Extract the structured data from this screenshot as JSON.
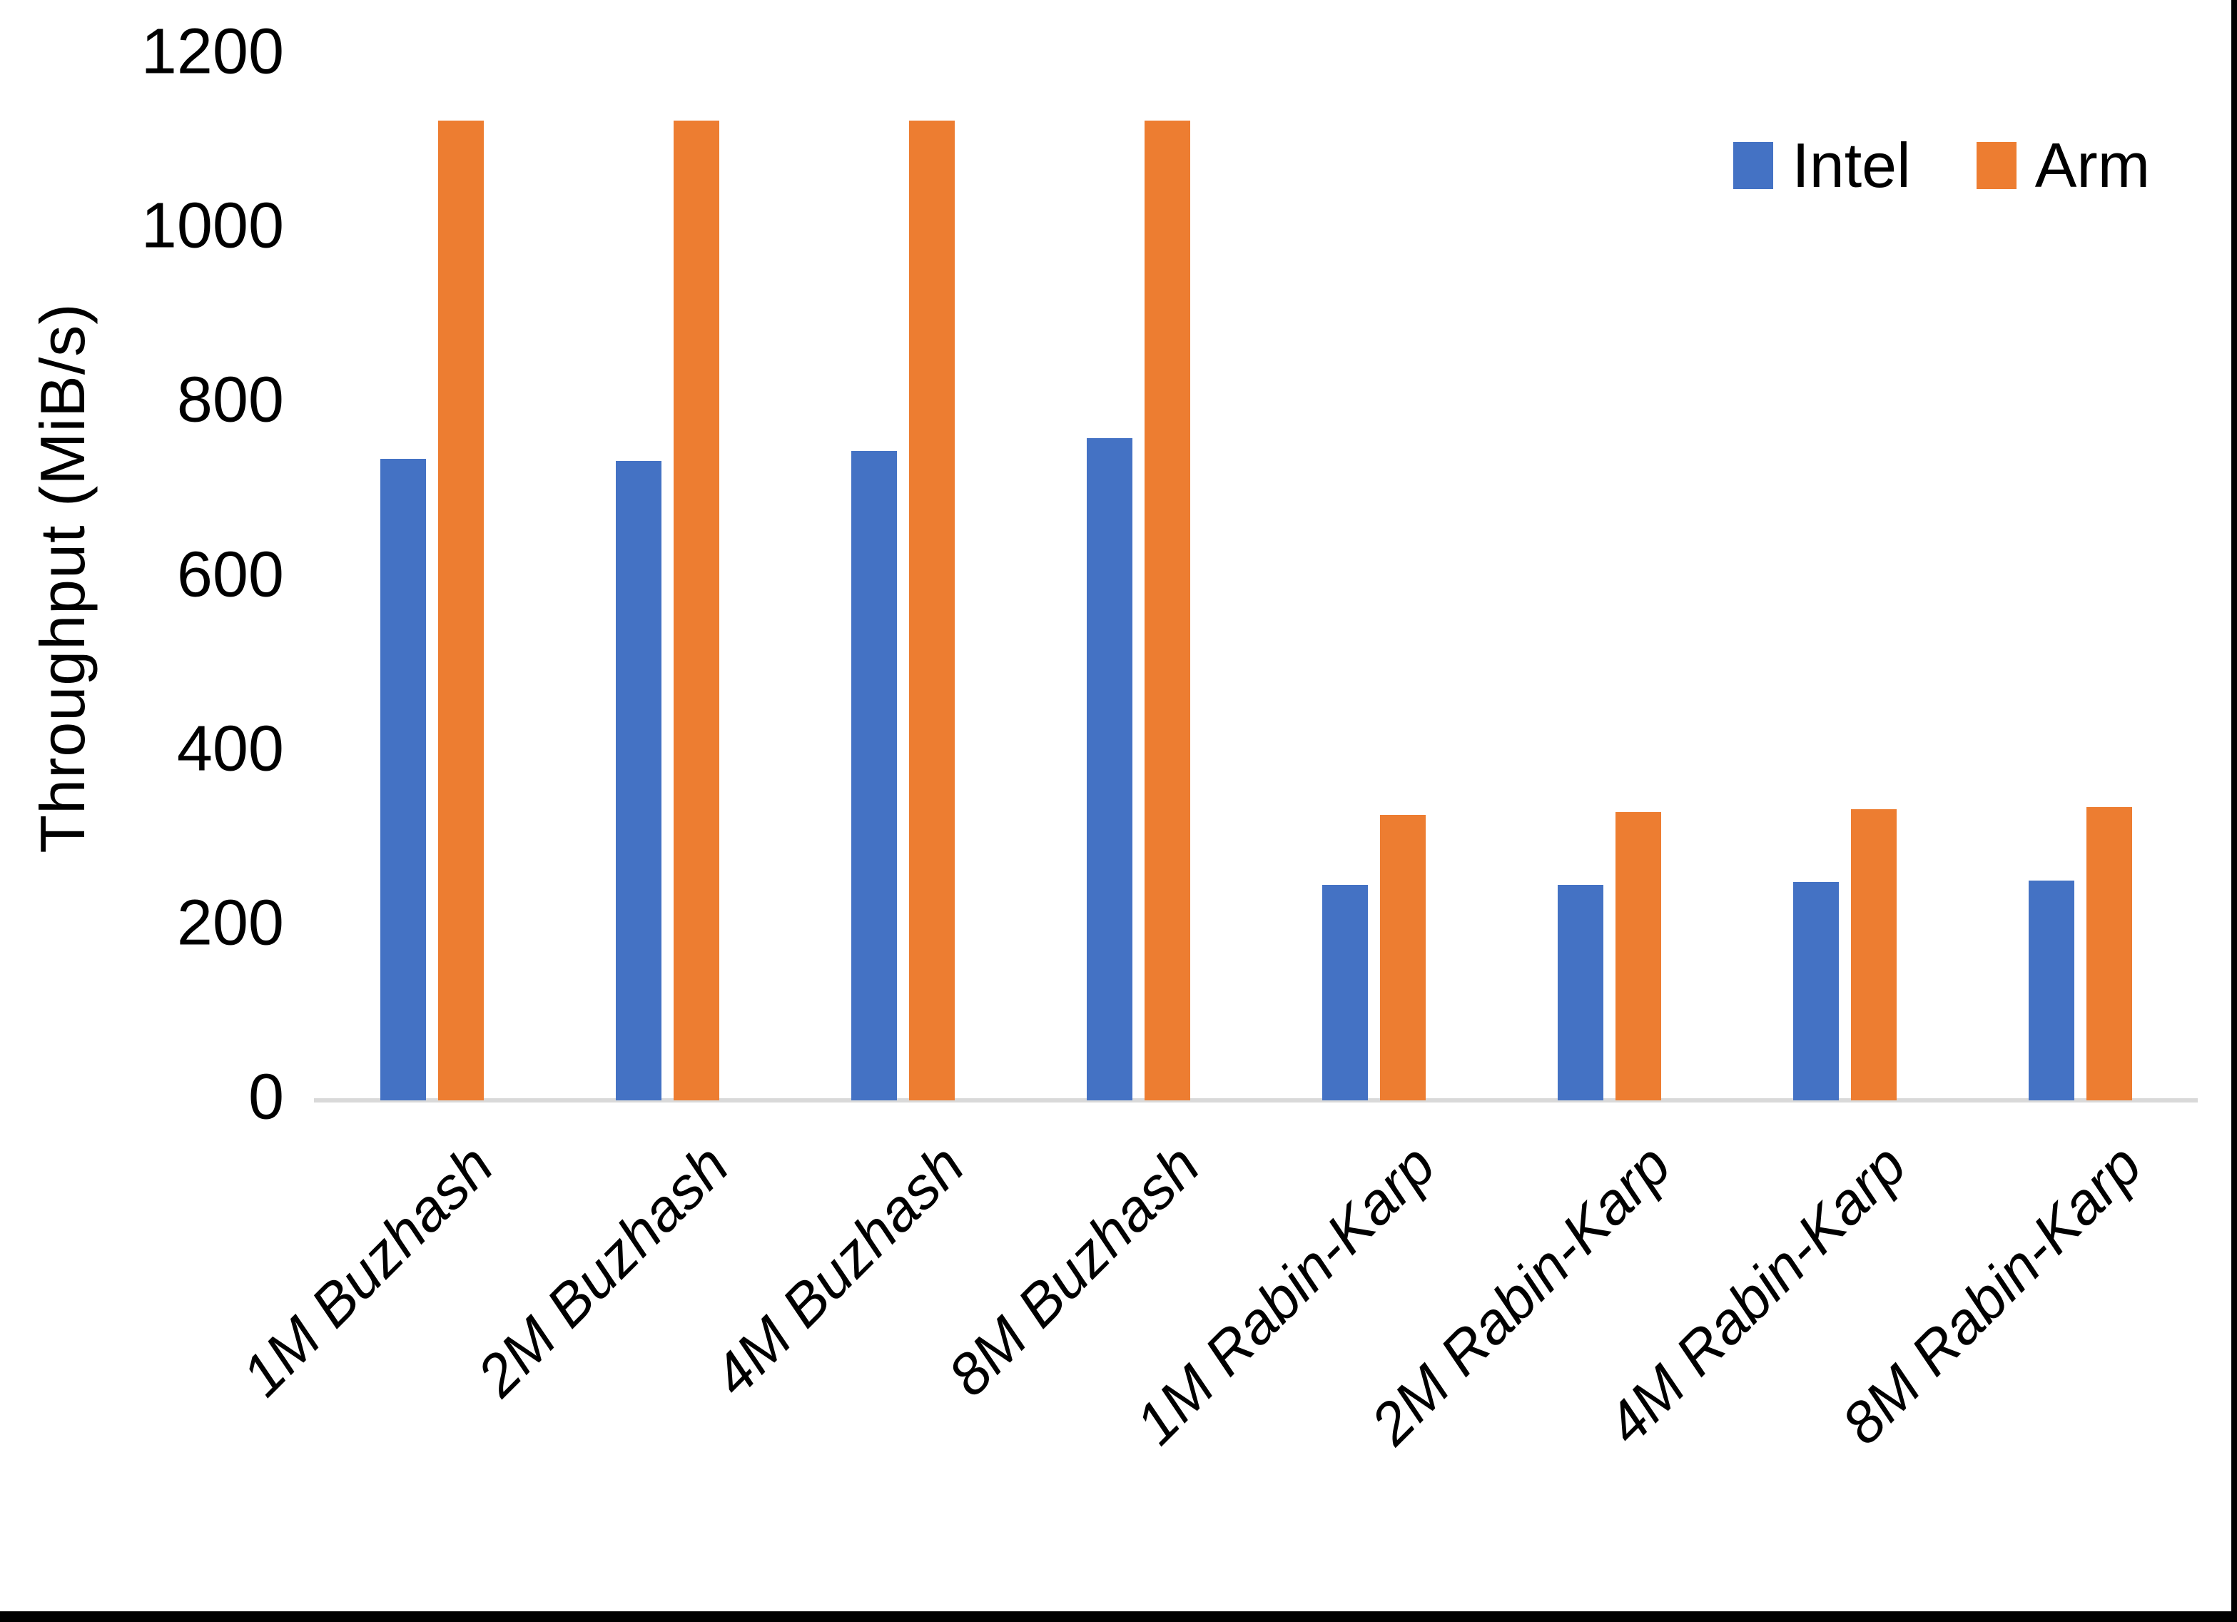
{
  "figure": {
    "ylabel": "Throughput (MiB/s)",
    "background": "#ffffff",
    "border_color": "#000000",
    "axis_line_color": "#d9d9d9",
    "text_color": "#000000"
  },
  "legend": {
    "items": [
      {
        "label": "Intel",
        "color": "#4472C4"
      },
      {
        "label": "Arm",
        "color": "#ED7D31"
      }
    ]
  },
  "chart_data": {
    "type": "bar",
    "title": "",
    "xlabel": "",
    "ylabel": "Throughput (MiB/s)",
    "ylim": [
      0,
      1200
    ],
    "yticks": [
      0,
      200,
      400,
      600,
      800,
      1000,
      1200
    ],
    "grid": false,
    "legend_position": "top-right",
    "categories": [
      "1M Buzhash",
      "2M Buzhash",
      "4M Buzhash",
      "8M Buzhash",
      "1M Rabin-Karp",
      "2M Rabin-Karp",
      "4M Rabin-Karp",
      "8M Rabin-Karp"
    ],
    "series": [
      {
        "name": "Intel",
        "color": "#4472C4",
        "values": [
          736,
          734,
          745,
          760,
          247,
          247,
          251,
          252
        ]
      },
      {
        "name": "Arm",
        "color": "#ED7D31",
        "values": [
          1125,
          1125,
          1125,
          1125,
          328,
          331,
          334,
          337
        ]
      }
    ]
  }
}
